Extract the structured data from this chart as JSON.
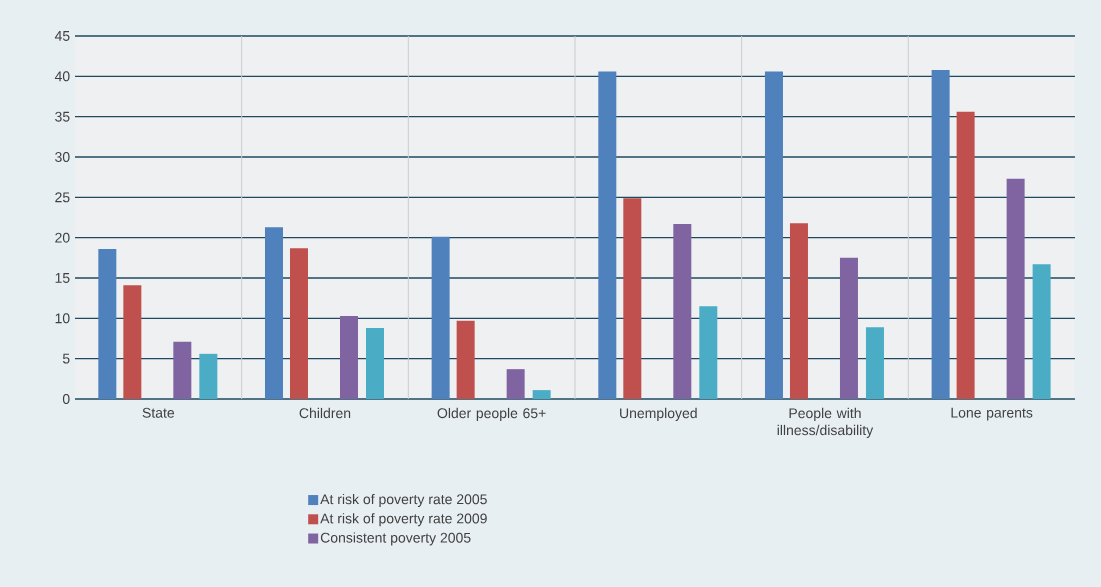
{
  "chart_data": {
    "type": "bar",
    "categories": [
      "State",
      "Children",
      "Older people 65+",
      "Unemployed",
      "People with illness/disability",
      "Lone parents"
    ],
    "series": [
      {
        "name": "At risk of poverty rate 2005",
        "color": "#4f81bd",
        "values": [
          18.6,
          21.3,
          20.1,
          40.6,
          40.6,
          40.8
        ]
      },
      {
        "name": "At risk of poverty rate 2009",
        "color": "#c0504d",
        "values": [
          14.1,
          18.7,
          9.7,
          24.9,
          21.8,
          35.6
        ]
      },
      {
        "name": "Consistent poverty 2005",
        "color": "#8064a2",
        "values": [
          7.1,
          10.3,
          3.7,
          21.7,
          17.5,
          27.3
        ]
      },
      {
        "color": "#4bacc6",
        "values": [
          5.6,
          8.8,
          1.1,
          11.5,
          8.9,
          16.7
        ]
      }
    ],
    "ylim": [
      0,
      45
    ],
    "yticks": [
      0,
      5,
      10,
      15,
      20,
      25,
      30,
      35,
      40,
      45
    ],
    "grid": "y",
    "legend": "bottom"
  }
}
